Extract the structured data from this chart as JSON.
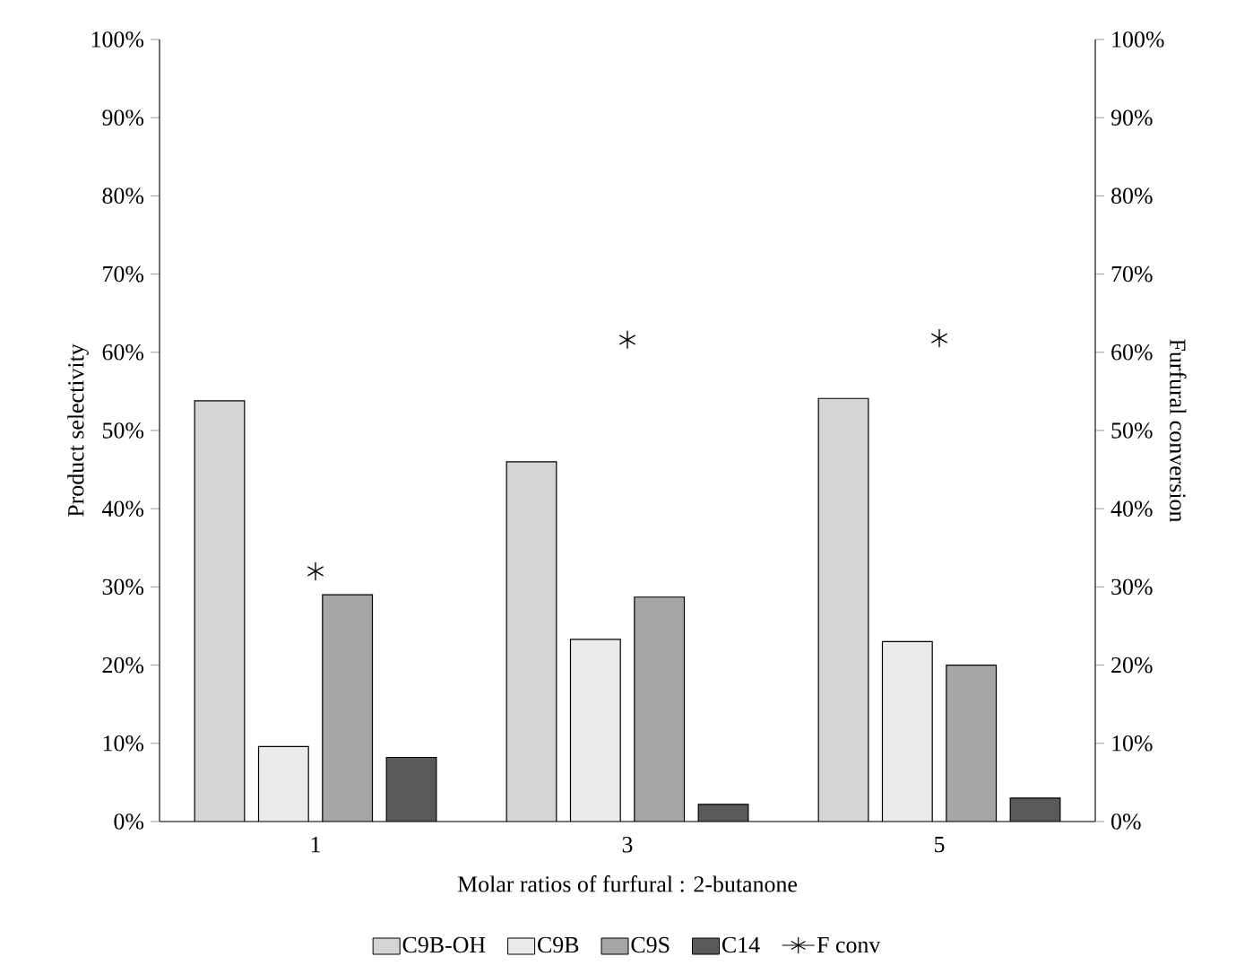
{
  "chart_data": {
    "type": "bar",
    "xlabel": "Molar ratios of furfural : 2-butanone",
    "ylabel": "Product selectivity",
    "y2label": "Furfural conversion",
    "categories": [
      "1",
      "3",
      "5"
    ],
    "series": [
      {
        "name": "C9B-OH",
        "color": "#d4d4d4",
        "values": [
          53.8,
          46.0,
          54.1
        ]
      },
      {
        "name": "C9B",
        "color": "#ebebeb",
        "values": [
          9.6,
          23.3,
          23.0
        ]
      },
      {
        "name": "C9S",
        "color": "#a6a6a6",
        "values": [
          29.0,
          28.7,
          20.0
        ]
      },
      {
        "name": "C14",
        "color": "#5a5a5a",
        "values": [
          8.2,
          2.2,
          3.0
        ]
      },
      {
        "name": "F conv",
        "type": "scatter",
        "axis": "y2",
        "marker": "cross",
        "color": "#000000",
        "x": [
          "1",
          "3",
          "5"
        ],
        "values": [
          32.0,
          61.6,
          61.8
        ]
      }
    ],
    "ylim": [
      0,
      100
    ],
    "yticks": [
      {
        "value": 0,
        "label": "0%"
      },
      {
        "value": 10,
        "label": "10%"
      },
      {
        "value": 20,
        "label": "20%"
      },
      {
        "value": 30,
        "label": "30%"
      },
      {
        "value": 40,
        "label": "40%"
      },
      {
        "value": 50,
        "label": "50%"
      },
      {
        "value": 60,
        "label": "60%"
      },
      {
        "value": 70,
        "label": "70%"
      },
      {
        "value": 80,
        "label": "80%"
      },
      {
        "value": 90,
        "label": "90%"
      },
      {
        "value": 100,
        "label": "100%"
      }
    ],
    "y2lim": [
      0,
      100
    ],
    "y2ticks": [
      {
        "value": 0,
        "label": "0%"
      },
      {
        "value": 10,
        "label": "10%"
      },
      {
        "value": 20,
        "label": "20%"
      },
      {
        "value": 30,
        "label": "30%"
      },
      {
        "value": 40,
        "label": "40%"
      },
      {
        "value": 50,
        "label": "50%"
      },
      {
        "value": 60,
        "label": "60%"
      },
      {
        "value": 70,
        "label": "70%"
      },
      {
        "value": 80,
        "label": "80%"
      },
      {
        "value": 90,
        "label": "90%"
      },
      {
        "value": 100,
        "label": "100%"
      }
    ],
    "grid": false,
    "legend": "bottom"
  }
}
